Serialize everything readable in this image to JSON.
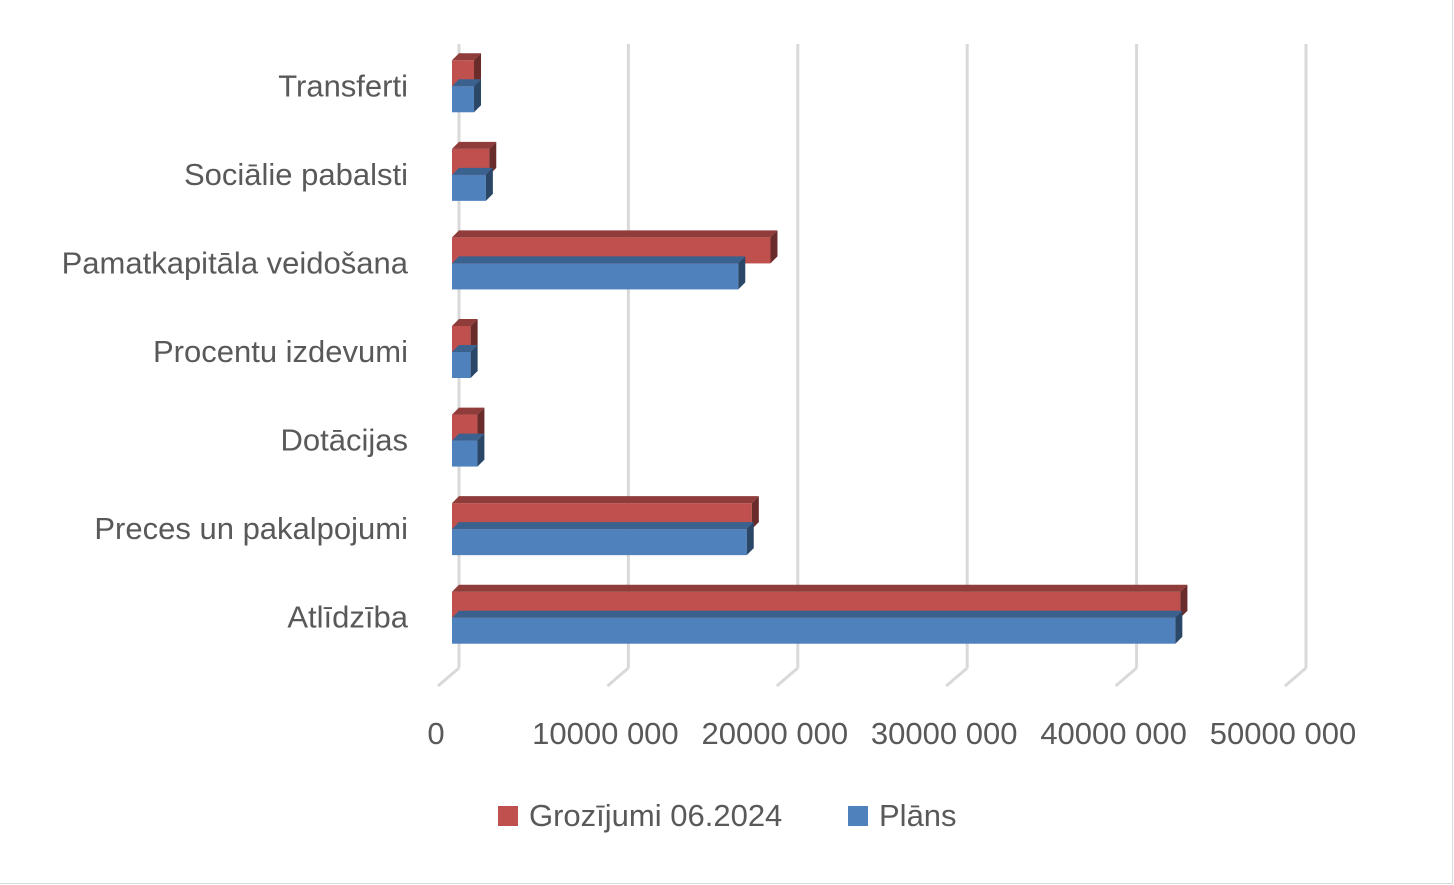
{
  "chart_data": {
    "type": "bar",
    "orientation": "horizontal",
    "style": "3d-clustered",
    "categories": [
      "Atlīdzība",
      "Preces un pakalpojumi",
      "Dotācijas",
      "Procentu izdevumi",
      "Pamatkapitāla veidošana",
      "Sociālie pabalsti",
      "Transferti"
    ],
    "series": [
      {
        "name": "Plāns",
        "color": "#4f81bd",
        "values": [
          42700000,
          17400000,
          1500000,
          1100000,
          16900000,
          2000000,
          1300000
        ]
      },
      {
        "name": "Grozījumi 06.2024",
        "color": "#c0504d",
        "values": [
          43000000,
          17700000,
          1500000,
          1100000,
          18800000,
          2200000,
          1300000
        ]
      }
    ],
    "xlim": [
      0,
      50000000
    ],
    "tick_labels": [
      "0",
      "10000 000",
      "20000 000",
      "30000 000",
      "40000 000",
      "50000 000"
    ],
    "xlabel": "",
    "ylabel": "",
    "grid": true,
    "legend_position": "bottom",
    "legend_order": [
      "Grozījumi 06.2024",
      "Plāns"
    ]
  }
}
